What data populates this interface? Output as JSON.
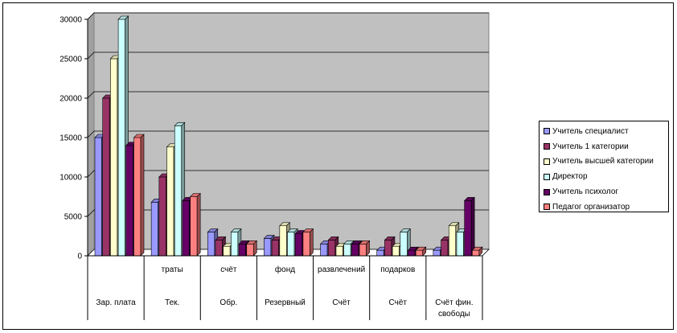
{
  "chart_data": {
    "type": "bar",
    "title": "",
    "xlabel": "",
    "ylabel": "",
    "ylim": [
      0,
      30000
    ],
    "yticks": [
      "0",
      "5000",
      "10000",
      "15000",
      "20000",
      "25000",
      "30000"
    ],
    "grid": true,
    "legend_position": "right",
    "categories": [
      {
        "line1": "",
        "line2": "Зар. плата",
        "line3": ""
      },
      {
        "line1": "траты",
        "line2": "Тек.",
        "line3": ""
      },
      {
        "line1": "счёт",
        "line2": "Обр.",
        "line3": ""
      },
      {
        "line1": "фонд",
        "line2": "Резервный",
        "line3": ""
      },
      {
        "line1": "развлечений",
        "line2": "Счёт",
        "line3": ""
      },
      {
        "line1": "подарков",
        "line2": "Счёт",
        "line3": ""
      },
      {
        "line1": "",
        "line2": "Счёт фин.",
        "line3": "свободы"
      }
    ],
    "series": [
      {
        "name": "Учитель специалист",
        "color": "#9999ff",
        "values": [
          15000,
          6800,
          3000,
          2200,
          1500,
          700,
          700
        ]
      },
      {
        "name": "Учитель 1 категории",
        "color": "#993366",
        "values": [
          20000,
          10000,
          2000,
          2000,
          2000,
          2000,
          2000
        ]
      },
      {
        "name": "Учитель высшей категории",
        "color": "#ffffcc",
        "values": [
          25000,
          13800,
          1200,
          3800,
          1200,
          1200,
          3800
        ]
      },
      {
        "name": "Директор",
        "color": "#ccffff",
        "values": [
          30000,
          16500,
          3000,
          3000,
          1500,
          3000,
          3000
        ]
      },
      {
        "name": "Учитель психолог",
        "color": "#660066",
        "values": [
          14000,
          7000,
          1500,
          2800,
          1500,
          700,
          7000
        ]
      },
      {
        "name": "Педагог организатор",
        "color": "#ff8080",
        "values": [
          15000,
          7500,
          1500,
          3000,
          1500,
          700,
          700
        ]
      }
    ]
  }
}
